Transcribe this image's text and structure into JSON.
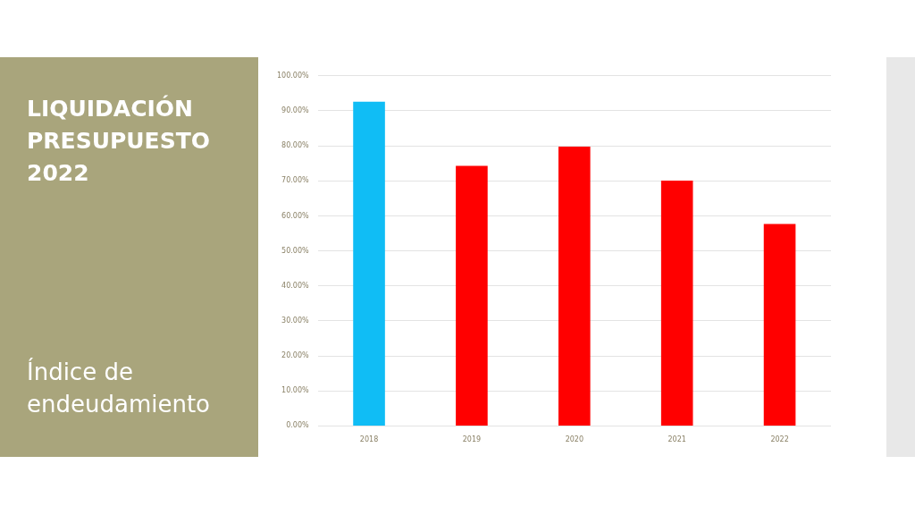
{
  "chart_data": {
    "type": "bar",
    "title": "LIQUIDACIÓN PRESUPUESTO 2022",
    "subtitle": "Índice de endeudamiento",
    "categories": [
      "2018",
      "2019",
      "2020",
      "2021",
      "2022"
    ],
    "values": [
      92.6,
      74.3,
      79.8,
      70.1,
      57.7
    ],
    "colors": [
      "#10bdf5",
      "#ff0000",
      "#ff0000",
      "#ff0000",
      "#ff0000"
    ],
    "ylim": [
      0,
      100
    ],
    "yticks": [
      {
        "value": 0,
        "label": "0.00%"
      },
      {
        "value": 10,
        "label": "10.00%"
      },
      {
        "value": 20,
        "label": "20.00%"
      },
      {
        "value": 30,
        "label": "30.00%"
      },
      {
        "value": 40,
        "label": "40.00%"
      },
      {
        "value": 50,
        "label": "50.00%"
      },
      {
        "value": 60,
        "label": "60.00%"
      },
      {
        "value": 70,
        "label": "70.00%"
      },
      {
        "value": 80,
        "label": "80.00%"
      },
      {
        "value": 90,
        "label": "90.00%"
      },
      {
        "value": 100,
        "label": "100.00%"
      }
    ],
    "grid": "y",
    "legend": false
  }
}
